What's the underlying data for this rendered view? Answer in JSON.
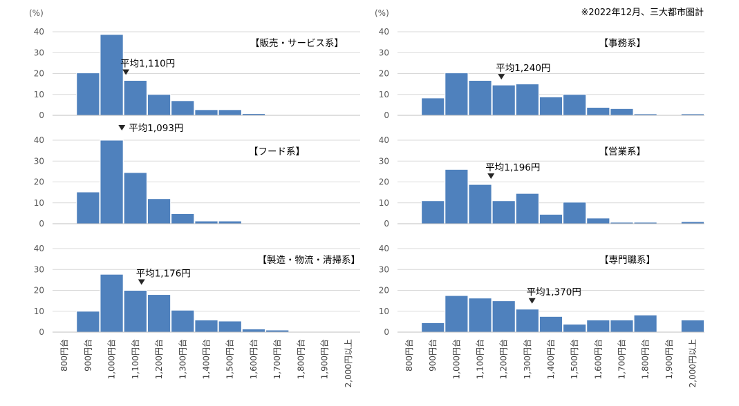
{
  "note": "※2022年12月、三大都市圏計",
  "unit_label": "(%)",
  "chart_data": [
    {
      "type": "bar",
      "title": "【販売・サービス系】",
      "annotation": "平均1,110円",
      "ylim": [
        0,
        40
      ],
      "yticks": [
        0,
        10,
        20,
        30,
        40
      ],
      "categories": [
        "800円台",
        "900円台",
        "1,000円台",
        "1,100円台",
        "1,200円台",
        "1,300円台",
        "1,400円台",
        "1,500円台",
        "1,600円台",
        "1,700円台",
        "1,800円台",
        "1,900円台",
        "2,000円以上"
      ],
      "values": [
        0.3,
        20.3,
        38.7,
        16.7,
        10.0,
        7.0,
        2.7,
        2.7,
        0.8,
        0.3,
        0.3,
        0.3,
        0.3
      ]
    },
    {
      "type": "bar",
      "title": "【フード系】",
      "annotation": "平均1,093円",
      "ylim": [
        0,
        40
      ],
      "yticks": [
        0,
        10,
        20,
        30,
        40
      ],
      "categories": [
        "800円台",
        "900円台",
        "1,000円台",
        "1,100円台",
        "1,200円台",
        "1,300円台",
        "1,400円台",
        "1,500円台",
        "1,600円台",
        "1,700円台",
        "1,800円台",
        "1,900円台",
        "2,000円以上"
      ],
      "values": [
        0.3,
        15.2,
        40.0,
        24.5,
        12.0,
        4.8,
        1.3,
        1.3,
        0.3,
        0.3,
        0.3,
        0.3,
        0.3
      ]
    },
    {
      "type": "bar",
      "title": "【製造・物流・清掃系】",
      "annotation": "平均1,176円",
      "ylim": [
        0,
        40
      ],
      "yticks": [
        0,
        10,
        20,
        30,
        40
      ],
      "categories": [
        "800円台",
        "900円台",
        "1,000円台",
        "1,100円台",
        "1,200円台",
        "1,300円台",
        "1,400円台",
        "1,500円台",
        "1,600円台",
        "1,700円台",
        "1,800円台",
        "1,900円台",
        "2,000円以上"
      ],
      "values": [
        0.0,
        10.0,
        27.7,
        20.0,
        18.0,
        10.5,
        5.8,
        5.3,
        1.5,
        1.0,
        0.0,
        0.0,
        0.0
      ]
    },
    {
      "type": "bar",
      "title": "【事務系】",
      "annotation": "平均1,240円",
      "ylim": [
        0,
        40
      ],
      "yticks": [
        0,
        10,
        20,
        30,
        40
      ],
      "categories": [
        "800円台",
        "900円台",
        "1,000円台",
        "1,100円台",
        "1,200円台",
        "1,300円台",
        "1,400円台",
        "1,500円台",
        "1,600円台",
        "1,700円台",
        "1,800円台",
        "1,900円台",
        "2,000円以上"
      ],
      "values": [
        0.3,
        8.3,
        20.3,
        16.7,
        14.5,
        15.0,
        8.8,
        10.0,
        3.8,
        3.2,
        0.7,
        0.3,
        0.7
      ]
    },
    {
      "type": "bar",
      "title": "【営業系】",
      "annotation": "平均1,196円",
      "ylim": [
        0,
        40
      ],
      "yticks": [
        0,
        10,
        20,
        30,
        40
      ],
      "categories": [
        "800円台",
        "900円台",
        "1,000円台",
        "1,100円台",
        "1,200円台",
        "1,300円台",
        "1,400円台",
        "1,500円台",
        "1,600円台",
        "1,700円台",
        "1,800円台",
        "1,900円台",
        "2,000円以上"
      ],
      "values": [
        0.3,
        11.0,
        26.0,
        18.8,
        11.0,
        14.5,
        4.5,
        10.3,
        2.7,
        0.7,
        0.7,
        0.3,
        1.0
      ]
    },
    {
      "type": "bar",
      "title": "【専門職系】",
      "annotation": "平均1,370円",
      "ylim": [
        0,
        40
      ],
      "yticks": [
        0,
        10,
        20,
        30,
        40
      ],
      "categories": [
        "800円台",
        "900円台",
        "1,000円台",
        "1,100円台",
        "1,200円台",
        "1,300円台",
        "1,400円台",
        "1,500円台",
        "1,600円台",
        "1,700円台",
        "1,800円台",
        "1,900円台",
        "2,000円以上"
      ],
      "values": [
        0.3,
        4.5,
        17.5,
        16.3,
        15.0,
        11.0,
        7.5,
        3.8,
        5.8,
        5.8,
        8.2,
        0.3,
        5.8
      ]
    }
  ]
}
